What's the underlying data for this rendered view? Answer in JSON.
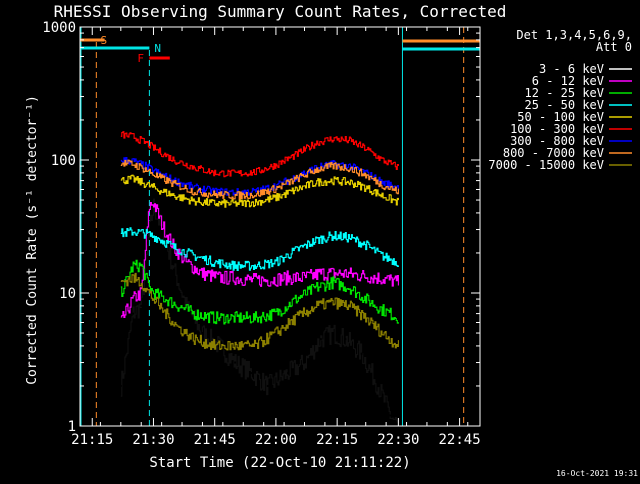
{
  "chart_data": {
    "type": "line",
    "title": "RHESSI Observing Summary Count Rates, Corrected",
    "xlabel": "Start Time (22-Oct-10 21:11:22)",
    "ylabel": "Corrected Count Rate (s⁻¹ detector⁻¹)",
    "xlim": [
      "21:12",
      "22:50"
    ],
    "ylim": [
      1,
      1000
    ],
    "y_scale": "log",
    "x_ticks": [
      "21:15",
      "21:30",
      "21:45",
      "22:00",
      "22:15",
      "22:30",
      "22:45"
    ],
    "y_ticks": [
      "1",
      "10",
      "100",
      "1000"
    ],
    "legend_header": [
      "Det 1,3,4,5,6,9,",
      "Att 0"
    ],
    "legend_position": "right",
    "timestamp": "16-Oct-2021 19:31",
    "flags": [
      {
        "label": "S",
        "color": "#ff8c2a",
        "t_start": "21:12",
        "t_end": "21:18",
        "line_t": "21:16",
        "line_color": "#ff8c2a"
      },
      {
        "label": "N",
        "color": "#00e6e6",
        "t_start": "21:12",
        "t_end": "21:29",
        "line_t": "21:29",
        "line_color": "#00e6e6"
      },
      {
        "label": "F",
        "color": "#ff0000",
        "t_start": "21:29",
        "t_end": "21:34"
      }
    ],
    "right_flags": [
      {
        "color": "#ff8c2a",
        "t_start": "22:31",
        "t_end": "22:50",
        "level": 800
      },
      {
        "color": "#00e6e6",
        "t_start": "22:31",
        "t_end": "22:50",
        "level": 680
      }
    ],
    "vertical_markers": [
      {
        "t": "22:31",
        "color": "#00e6e6",
        "style": "solid"
      },
      {
        "t": "22:46",
        "color": "#ff8c2a",
        "style": "dashed"
      }
    ],
    "data_start": "21:22",
    "data_end": "22:30",
    "series": [
      {
        "name": "3 - 6 keV",
        "color": "#000000",
        "points": [
          [
            "21:22",
            2
          ],
          [
            "21:25",
            7
          ],
          [
            "21:27",
            8
          ],
          [
            "21:29",
            30
          ],
          [
            "21:30",
            45
          ],
          [
            "21:32",
            30
          ],
          [
            "21:35",
            15
          ],
          [
            "21:38",
            8
          ],
          [
            "21:42",
            5
          ],
          [
            "21:46",
            4
          ],
          [
            "21:50",
            3
          ],
          [
            "21:54",
            2.5
          ],
          [
            "21:58",
            2
          ],
          [
            "22:03",
            2.5
          ],
          [
            "22:07",
            3
          ],
          [
            "22:11",
            4.5
          ],
          [
            "22:14",
            5
          ],
          [
            "22:17",
            4.5
          ],
          [
            "22:21",
            3.5
          ],
          [
            "22:25",
            2
          ],
          [
            "22:28",
            1.2
          ],
          [
            "22:30",
            1
          ]
        ]
      },
      {
        "name": "6 - 12 keV",
        "color": "#ff00ff",
        "points": [
          [
            "21:22",
            6
          ],
          [
            "21:25",
            9
          ],
          [
            "21:27",
            10
          ],
          [
            "21:29",
            45
          ],
          [
            "21:30",
            48
          ],
          [
            "21:32",
            33
          ],
          [
            "21:35",
            22
          ],
          [
            "21:38",
            17
          ],
          [
            "21:42",
            14
          ],
          [
            "21:46",
            13
          ],
          [
            "21:50",
            13
          ],
          [
            "21:54",
            12.5
          ],
          [
            "21:58",
            12.5
          ],
          [
            "22:03",
            13
          ],
          [
            "22:07",
            13
          ],
          [
            "22:11",
            14
          ],
          [
            "22:14",
            14
          ],
          [
            "22:17",
            14
          ],
          [
            "22:21",
            13.5
          ],
          [
            "22:25",
            13
          ],
          [
            "22:28",
            12.5
          ],
          [
            "22:30",
            12
          ]
        ]
      },
      {
        "name": "12 - 25 keV",
        "color": "#00e600",
        "points": [
          [
            "21:22",
            10
          ],
          [
            "21:25",
            16
          ],
          [
            "21:27",
            16
          ],
          [
            "21:29",
            11
          ],
          [
            "21:30",
            10
          ],
          [
            "21:33",
            9
          ],
          [
            "21:36",
            8
          ],
          [
            "21:40",
            7
          ],
          [
            "21:45",
            6.5
          ],
          [
            "21:50",
            6.5
          ],
          [
            "21:55",
            6.5
          ],
          [
            "22:00",
            7
          ],
          [
            "22:05",
            9
          ],
          [
            "22:10",
            11
          ],
          [
            "22:14",
            12
          ],
          [
            "22:18",
            11
          ],
          [
            "22:22",
            9
          ],
          [
            "22:26",
            7.5
          ],
          [
            "22:30",
            6.5
          ]
        ]
      },
      {
        "name": "25 - 50 keV",
        "color": "#00ffff",
        "points": [
          [
            "21:22",
            28
          ],
          [
            "21:25",
            29
          ],
          [
            "21:28",
            28
          ],
          [
            "21:31",
            26
          ],
          [
            "21:35",
            22
          ],
          [
            "21:40",
            19
          ],
          [
            "21:45",
            17
          ],
          [
            "21:50",
            16
          ],
          [
            "21:55",
            16
          ],
          [
            "22:00",
            17
          ],
          [
            "22:05",
            21
          ],
          [
            "22:10",
            25
          ],
          [
            "22:14",
            27
          ],
          [
            "22:18",
            26
          ],
          [
            "22:22",
            23
          ],
          [
            "22:26",
            19
          ],
          [
            "22:30",
            17
          ]
        ]
      },
      {
        "name": "50 - 100 keV",
        "color": "#e6d000",
        "points": [
          [
            "21:22",
            70
          ],
          [
            "21:25",
            72
          ],
          [
            "21:28",
            66
          ],
          [
            "21:31",
            60
          ],
          [
            "21:35",
            54
          ],
          [
            "21:40",
            49
          ],
          [
            "21:45",
            47
          ],
          [
            "21:50",
            47
          ],
          [
            "21:55",
            48
          ],
          [
            "22:00",
            52
          ],
          [
            "22:05",
            60
          ],
          [
            "22:10",
            68
          ],
          [
            "22:14",
            70
          ],
          [
            "22:18",
            68
          ],
          [
            "22:22",
            62
          ],
          [
            "22:26",
            54
          ],
          [
            "22:30",
            48
          ]
        ]
      },
      {
        "name": "100 - 300 keV",
        "color": "#ff0000",
        "points": [
          [
            "21:22",
            155
          ],
          [
            "21:25",
            150
          ],
          [
            "21:28",
            135
          ],
          [
            "21:31",
            118
          ],
          [
            "21:35",
            100
          ],
          [
            "21:40",
            88
          ],
          [
            "21:45",
            80
          ],
          [
            "21:50",
            79
          ],
          [
            "21:55",
            81
          ],
          [
            "22:00",
            92
          ],
          [
            "22:05",
            110
          ],
          [
            "22:10",
            135
          ],
          [
            "22:14",
            145
          ],
          [
            "22:18",
            140
          ],
          [
            "22:22",
            122
          ],
          [
            "22:26",
            100
          ],
          [
            "22:30",
            88
          ]
        ]
      },
      {
        "name": "300 - 800 keV",
        "color": "#0000ff",
        "points": [
          [
            "21:22",
            100
          ],
          [
            "21:25",
            98
          ],
          [
            "21:28",
            90
          ],
          [
            "21:31",
            80
          ],
          [
            "21:35",
            70
          ],
          [
            "21:40",
            62
          ],
          [
            "21:45",
            58
          ],
          [
            "21:50",
            57
          ],
          [
            "21:55",
            58
          ],
          [
            "22:00",
            64
          ],
          [
            "22:05",
            75
          ],
          [
            "22:10",
            88
          ],
          [
            "22:14",
            93
          ],
          [
            "22:18",
            90
          ],
          [
            "22:22",
            80
          ],
          [
            "22:26",
            68
          ],
          [
            "22:30",
            62
          ]
        ]
      },
      {
        "name": "800 - 7000 keV",
        "color": "#ff8c2a",
        "points": [
          [
            "21:22",
            95
          ],
          [
            "21:25",
            93
          ],
          [
            "21:28",
            85
          ],
          [
            "21:31",
            75
          ],
          [
            "21:35",
            66
          ],
          [
            "21:40",
            58
          ],
          [
            "21:45",
            55
          ],
          [
            "21:50",
            54
          ],
          [
            "21:55",
            55
          ],
          [
            "22:00",
            61
          ],
          [
            "22:05",
            72
          ],
          [
            "22:10",
            85
          ],
          [
            "22:14",
            90
          ],
          [
            "22:18",
            87
          ],
          [
            "22:22",
            77
          ],
          [
            "22:26",
            65
          ],
          [
            "22:30",
            58
          ]
        ]
      },
      {
        "name": "7000 - 15000 keV",
        "color": "#8c8000",
        "points": [
          [
            "21:22",
            12
          ],
          [
            "21:25",
            13
          ],
          [
            "21:27",
            12
          ],
          [
            "21:30",
            9
          ],
          [
            "21:33",
            7
          ],
          [
            "21:36",
            5.5
          ],
          [
            "21:40",
            4.5
          ],
          [
            "21:45",
            4
          ],
          [
            "21:50",
            4
          ],
          [
            "21:55",
            4
          ],
          [
            "22:00",
            5
          ],
          [
            "22:05",
            6.5
          ],
          [
            "22:10",
            8
          ],
          [
            "22:14",
            8.5
          ],
          [
            "22:18",
            8
          ],
          [
            "22:22",
            6.5
          ],
          [
            "22:26",
            5
          ],
          [
            "22:30",
            4
          ]
        ]
      }
    ]
  }
}
